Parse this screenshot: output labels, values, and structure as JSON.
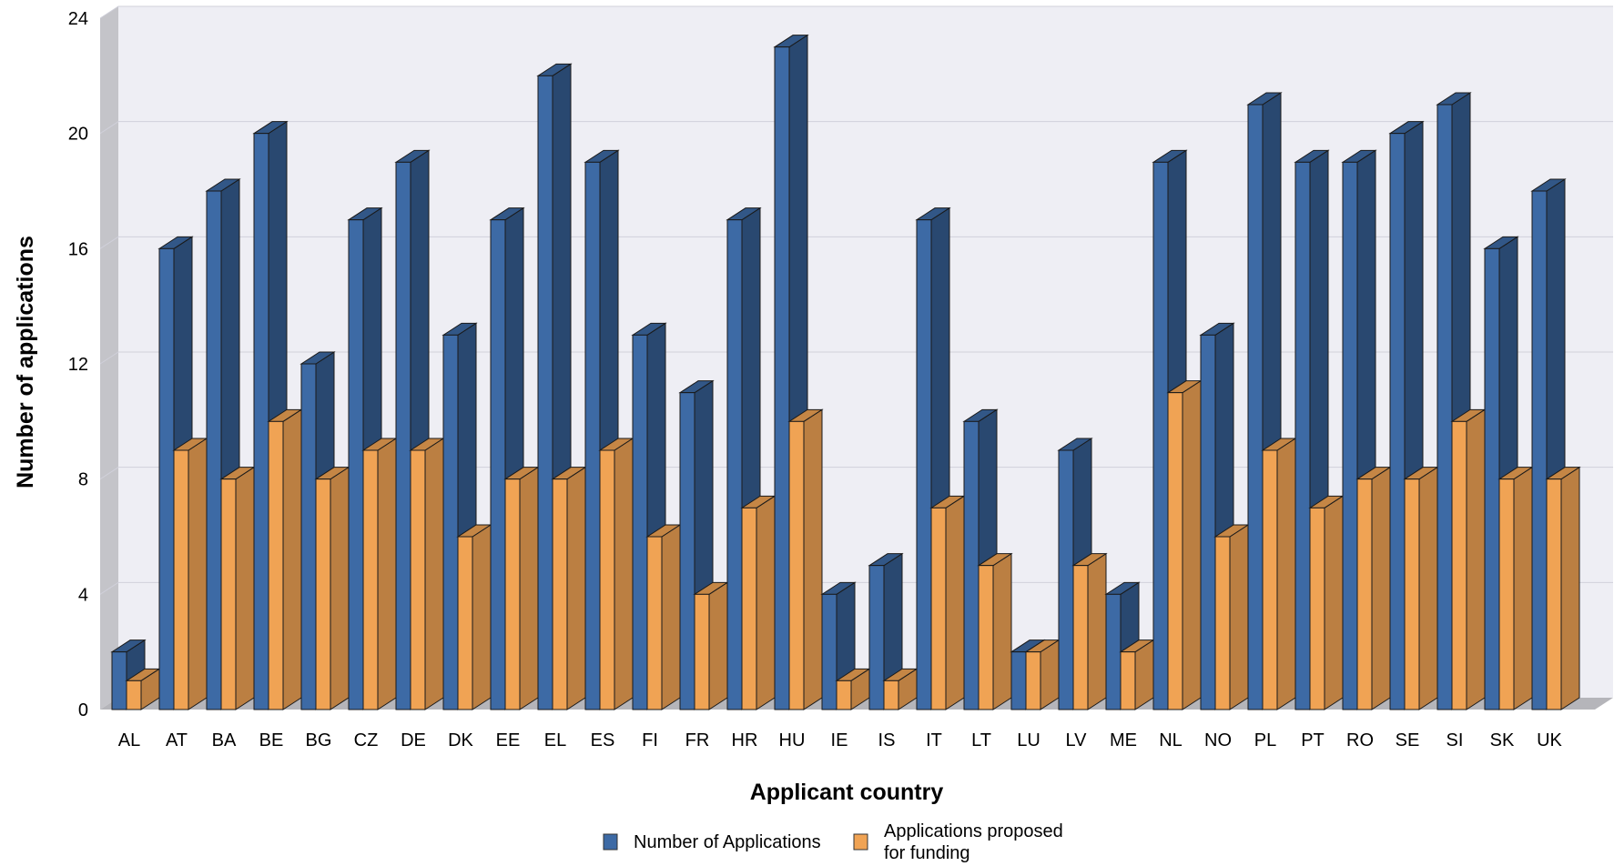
{
  "chart_data": {
    "type": "bar",
    "xlabel": "Applicant country",
    "ylabel": "Number of applications",
    "ylim": [
      0,
      24
    ],
    "yticks": [
      0,
      4,
      8,
      12,
      16,
      20,
      24
    ],
    "grid": true,
    "legend_position": "bottom",
    "categories": [
      "AL",
      "AT",
      "BA",
      "BE",
      "BG",
      "CZ",
      "DE",
      "DK",
      "EE",
      "EL",
      "ES",
      "FI",
      "FR",
      "HR",
      "HU",
      "IE",
      "IS",
      "IT",
      "LT",
      "LU",
      "LV",
      "ME",
      "NL",
      "NO",
      "PL",
      "PT",
      "RO",
      "SE",
      "SI",
      "SK",
      "UK"
    ],
    "series": [
      {
        "name": "Number of Applications",
        "color": "#3d6aa5",
        "values": [
          2,
          16,
          18,
          20,
          12,
          17,
          19,
          13,
          17,
          22,
          19,
          13,
          11,
          17,
          23,
          4,
          5,
          17,
          10,
          2,
          9,
          4,
          19,
          13,
          21,
          19,
          19,
          20,
          21,
          16,
          18
        ]
      },
      {
        "name": "Applications proposed for funding",
        "legend_lines": [
          "Applications proposed",
          "for funding"
        ],
        "color": "#f0a354",
        "values": [
          1,
          9,
          8,
          10,
          8,
          9,
          9,
          6,
          8,
          8,
          9,
          6,
          4,
          7,
          10,
          1,
          1,
          7,
          5,
          2,
          5,
          2,
          11,
          6,
          9,
          7,
          8,
          8,
          10,
          8,
          8
        ]
      }
    ]
  }
}
